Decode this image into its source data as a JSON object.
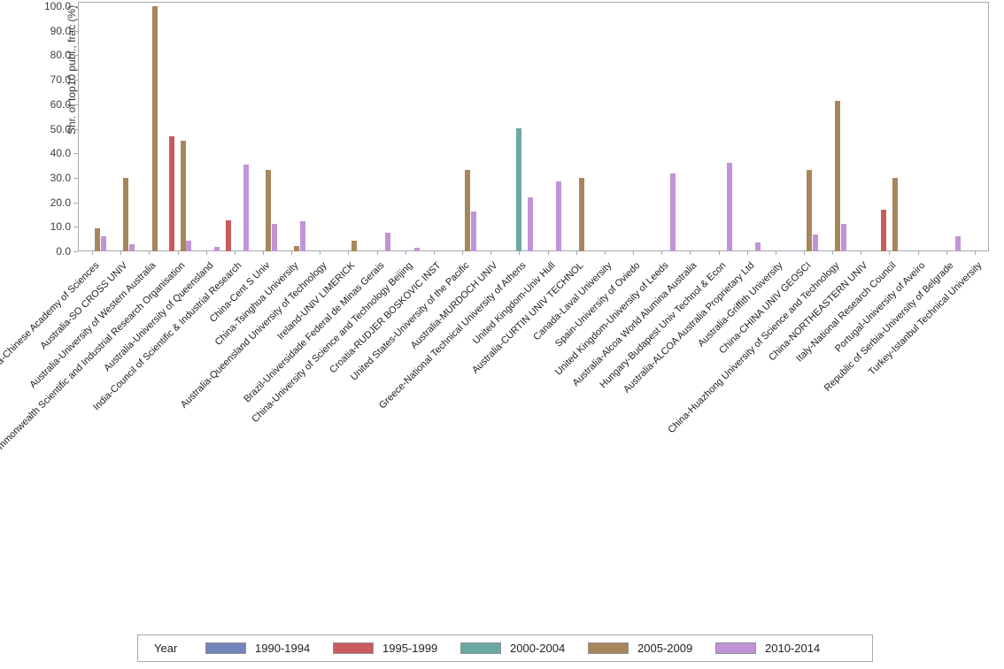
{
  "chart_data": {
    "type": "bar",
    "title": "",
    "xlabel": "",
    "ylabel": "Shr. of top10 publ., frac (%)",
    "ylim": [
      0,
      100
    ],
    "yticks": [
      "0.0",
      "10.0",
      "20.0",
      "30.0",
      "40.0",
      "50.0",
      "60.0",
      "70.0",
      "80.0",
      "90.0",
      "100.0"
    ],
    "grid": false,
    "legend_title": "Year",
    "legend_position": "bottom",
    "categories": [
      "China-Chinese Academy of Sciences",
      "Australia-SO CROSS UNIV",
      "Australia-University of Western Australia",
      "Australia-Commonwealth Scientific and Industrial Research Organisation",
      "Australia-University of Queensland",
      "India-Council of Scientific & Industrial Research",
      "China-Cent S Univ",
      "China-Tsinghua University",
      "Australia-Queensland University of Technology",
      "Ireland-UNIV LIMERICK",
      "Brazil-Universidade Federal de Minas Gerais",
      "China-University of Science and Technology Beijing",
      "Croatia-RUDJER BOSKOVIC INST",
      "United States-University of the Pacific",
      "Australia-MURDOCH UNIV",
      "Greece-National Technical University of Athens",
      "United Kingdom-Univ Hull",
      "Australia-CURTIN UNIV TECHNOL",
      "Canada-Laval University",
      "Spain-University of Oviedo",
      "United Kingdom-University of Leeds",
      "Australia-Alcoa World Alumina Australia",
      "Hungary-Budapest Univ Technol & Econ",
      "Australia-ALCOA Australia Proprietary Ltd",
      "Australia-Griffith University",
      "China-CHINA UNIV GEOSCI",
      "China-Huazhong University of Science and Technology",
      "China-NORTHEASTERN UNIV",
      "Italy-National Research Council",
      "Portugal-University of Aveiro",
      "Republic of Serbia-University of Belgrade",
      "Turkey-Istanbul Technical University"
    ],
    "series": [
      {
        "name": "1990-1994",
        "color": "#7285b8",
        "values": [
          null,
          null,
          null,
          null,
          null,
          null,
          null,
          null,
          null,
          null,
          null,
          null,
          null,
          null,
          null,
          null,
          null,
          null,
          null,
          null,
          null,
          null,
          null,
          null,
          null,
          null,
          null,
          null,
          null,
          null,
          null,
          null
        ]
      },
      {
        "name": "1995-1999",
        "color": "#c95b5e",
        "values": [
          null,
          null,
          null,
          46.8,
          null,
          12.5,
          null,
          null,
          null,
          null,
          null,
          null,
          null,
          null,
          null,
          null,
          null,
          null,
          null,
          null,
          null,
          null,
          null,
          null,
          null,
          null,
          null,
          null,
          16.9,
          null,
          null,
          null
        ]
      },
      {
        "name": "2000-2004",
        "color": "#6aa9a1",
        "values": [
          null,
          null,
          null,
          null,
          null,
          null,
          null,
          null,
          null,
          null,
          null,
          null,
          null,
          null,
          null,
          50.0,
          null,
          null,
          null,
          null,
          null,
          null,
          null,
          null,
          null,
          null,
          null,
          null,
          null,
          null,
          null,
          null
        ]
      },
      {
        "name": "2005-2009",
        "color": "#a8865b",
        "values": [
          9.3,
          30.0,
          100.0,
          45.0,
          null,
          null,
          33.3,
          2.0,
          null,
          4.2,
          null,
          null,
          null,
          33.3,
          null,
          null,
          null,
          30.0,
          null,
          null,
          null,
          null,
          null,
          null,
          null,
          33.3,
          61.2,
          null,
          30.0,
          null,
          null,
          null
        ]
      },
      {
        "name": "2010-2014",
        "color": "#c094d6",
        "values": [
          6.0,
          2.9,
          null,
          4.3,
          1.9,
          35.3,
          11.1,
          12.2,
          null,
          null,
          7.6,
          1.6,
          null,
          16.2,
          null,
          22.2,
          28.4,
          null,
          null,
          null,
          31.6,
          null,
          36.0,
          3.7,
          0.5,
          7.0,
          11.1,
          null,
          null,
          null,
          6.0,
          null
        ]
      }
    ]
  }
}
